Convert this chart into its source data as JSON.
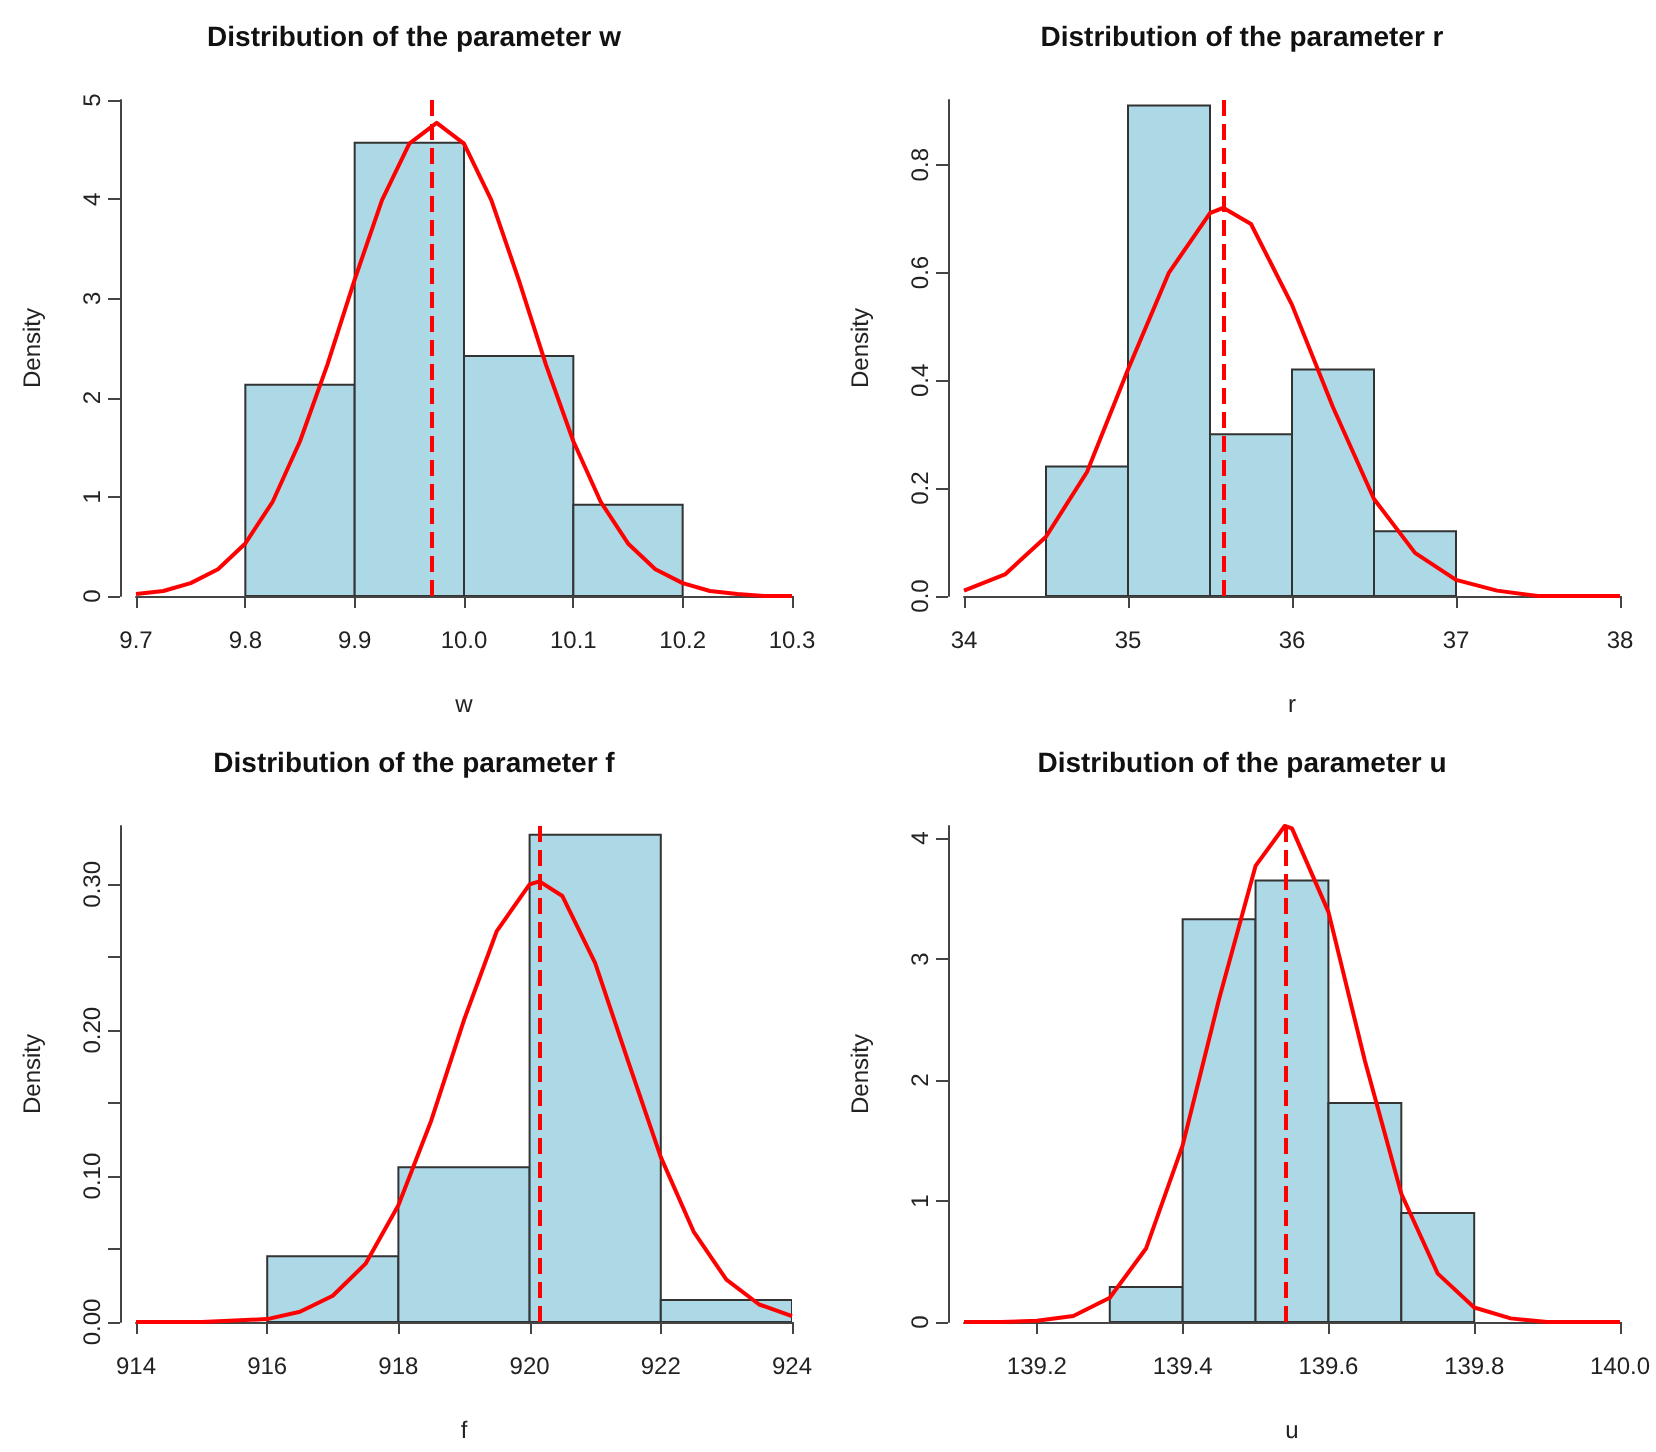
{
  "chart_data": [
    {
      "type": "histogram",
      "title": "Distribution of the parameter w",
      "xlabel": "w",
      "ylabel": "Density",
      "xlim": [
        9.7,
        10.3
      ],
      "xticks": [
        9.7,
        9.8,
        9.9,
        {
          "value": 10,
          "label": "10.0"
        },
        10.1,
        10.2,
        10.3
      ],
      "ylim": [
        0,
        5
      ],
      "yticks": [
        0,
        1,
        2,
        3,
        4,
        5
      ],
      "series": [
        {
          "color": "#add8e6",
          "bins": [
            9.8,
            9.9,
            10.0,
            10.1,
            10.2
          ],
          "values": [
            2.13,
            4.57,
            2.42,
            0.92
          ]
        },
        {
          "type": "line",
          "color": "#ff0000",
          "x": [
            9.7,
            9.725,
            9.75,
            9.775,
            9.8,
            9.825,
            9.85,
            9.875,
            9.9,
            9.925,
            9.95,
            9.975,
            10.0,
            10.025,
            10.05,
            10.075,
            10.1,
            10.125,
            10.15,
            10.175,
            10.2,
            10.225,
            10.25,
            10.275,
            10.3
          ],
          "values": [
            0.02,
            0.05,
            0.13,
            0.27,
            0.53,
            0.95,
            1.56,
            2.33,
            3.19,
            3.99,
            4.56,
            4.77,
            4.56,
            3.99,
            3.19,
            2.33,
            1.56,
            0.95,
            0.53,
            0.27,
            0.13,
            0.05,
            0.02,
            0.0,
            0.0
          ]
        }
      ],
      "ref_lines": [
        {
          "axis": "x",
          "value": 9.97,
          "color": "#ff0000",
          "line_style": "dashed"
        }
      ]
    },
    {
      "type": "histogram",
      "title": "Distribution of the parameter r",
      "xlabel": "r",
      "ylabel": "Density",
      "xlim": [
        34,
        38
      ],
      "xticks": [
        34,
        35,
        36,
        37,
        38
      ],
      "ylim": [
        0,
        0.92
      ],
      "yticks": [
        {
          "value": 0,
          "label": "0.0"
        },
        0.2,
        0.4,
        0.6,
        0.8
      ],
      "series": [
        {
          "color": "#add8e6",
          "bins": [
            34.5,
            35,
            35.5,
            36,
            36.5,
            37
          ],
          "values": [
            0.24,
            0.91,
            0.3,
            0.42,
            0.12
          ]
        },
        {
          "type": "line",
          "color": "#ff0000",
          "x": [
            34,
            34.25,
            34.5,
            34.75,
            35,
            35.25,
            35.5,
            35.58,
            35.75,
            36,
            36.25,
            36.5,
            36.75,
            37,
            37.25,
            37.5,
            37.75,
            38
          ],
          "values": [
            0.01,
            0.04,
            0.11,
            0.23,
            0.42,
            0.6,
            0.71,
            0.72,
            0.69,
            0.54,
            0.35,
            0.18,
            0.08,
            0.03,
            0.01,
            0.0,
            0.0,
            0.0
          ]
        }
      ],
      "ref_lines": [
        {
          "axis": "x",
          "value": 35.58,
          "color": "#ff0000",
          "line_style": "dashed"
        }
      ]
    },
    {
      "type": "histogram",
      "title": "Distribution of the parameter f",
      "xlabel": "f",
      "ylabel": "Density",
      "xlim": [
        914,
        924
      ],
      "xticks": [
        914,
        916,
        918,
        920,
        922,
        924
      ],
      "ylim": [
        0,
        0.34
      ],
      "yticks": [
        {
          "value": 0,
          "label": "0.00"
        },
        {
          "value": 0.05,
          "label": null
        },
        {
          "value": 0.1,
          "label": "0.10"
        },
        {
          "value": 0.15,
          "label": null
        },
        {
          "value": 0.2,
          "label": "0.20"
        },
        {
          "value": 0.25,
          "label": null
        },
        {
          "value": 0.3,
          "label": "0.30"
        }
      ],
      "series": [
        {
          "color": "#add8e6",
          "bins": [
            916,
            918,
            920,
            922,
            924
          ],
          "values": [
            0.045,
            0.106,
            0.334,
            0.015
          ]
        },
        {
          "type": "line",
          "color": "#ff0000",
          "x": [
            914,
            915,
            916,
            916.5,
            917,
            917.5,
            918,
            918.5,
            919,
            919.5,
            920,
            920.15,
            920.5,
            921,
            921.5,
            922,
            922.5,
            923,
            923.5,
            924
          ],
          "values": [
            0.0,
            0.0,
            0.002,
            0.007,
            0.018,
            0.04,
            0.08,
            0.138,
            0.207,
            0.268,
            0.3,
            0.302,
            0.292,
            0.246,
            0.179,
            0.113,
            0.062,
            0.029,
            0.012,
            0.004
          ]
        }
      ],
      "ref_lines": [
        {
          "axis": "x",
          "value": 920.15,
          "color": "#ff0000",
          "line_style": "dashed"
        }
      ]
    },
    {
      "type": "histogram",
      "title": "Distribution of the parameter u",
      "xlabel": "u",
      "ylabel": "Density",
      "xlim": [
        139.1,
        140.0
      ],
      "xticks": [
        139.2,
        139.4,
        139.6,
        139.8,
        {
          "value": 140,
          "label": "140.0"
        }
      ],
      "ylim": [
        0,
        4.1
      ],
      "yticks": [
        0,
        1,
        2,
        3,
        4
      ],
      "series": [
        {
          "color": "#add8e6",
          "bins": [
            139.3,
            139.4,
            139.5,
            139.6,
            139.7,
            139.8
          ],
          "values": [
            0.29,
            3.33,
            3.65,
            1.81,
            0.9
          ]
        },
        {
          "type": "line",
          "color": "#ff0000",
          "x": [
            139.1,
            139.15,
            139.2,
            139.25,
            139.3,
            139.35,
            139.4,
            139.45,
            139.5,
            139.54,
            139.55,
            139.6,
            139.65,
            139.7,
            139.75,
            139.8,
            139.85,
            139.9,
            139.95,
            140.0
          ],
          "values": [
            0.0,
            0.0,
            0.01,
            0.05,
            0.2,
            0.61,
            1.46,
            2.67,
            3.77,
            4.1,
            4.08,
            3.39,
            2.16,
            1.06,
            0.4,
            0.12,
            0.03,
            0.0,
            0.0,
            0.0
          ]
        }
      ],
      "ref_lines": [
        {
          "axis": "x",
          "value": 139.54,
          "color": "#ff0000",
          "line_style": "dashed"
        }
      ]
    }
  ]
}
